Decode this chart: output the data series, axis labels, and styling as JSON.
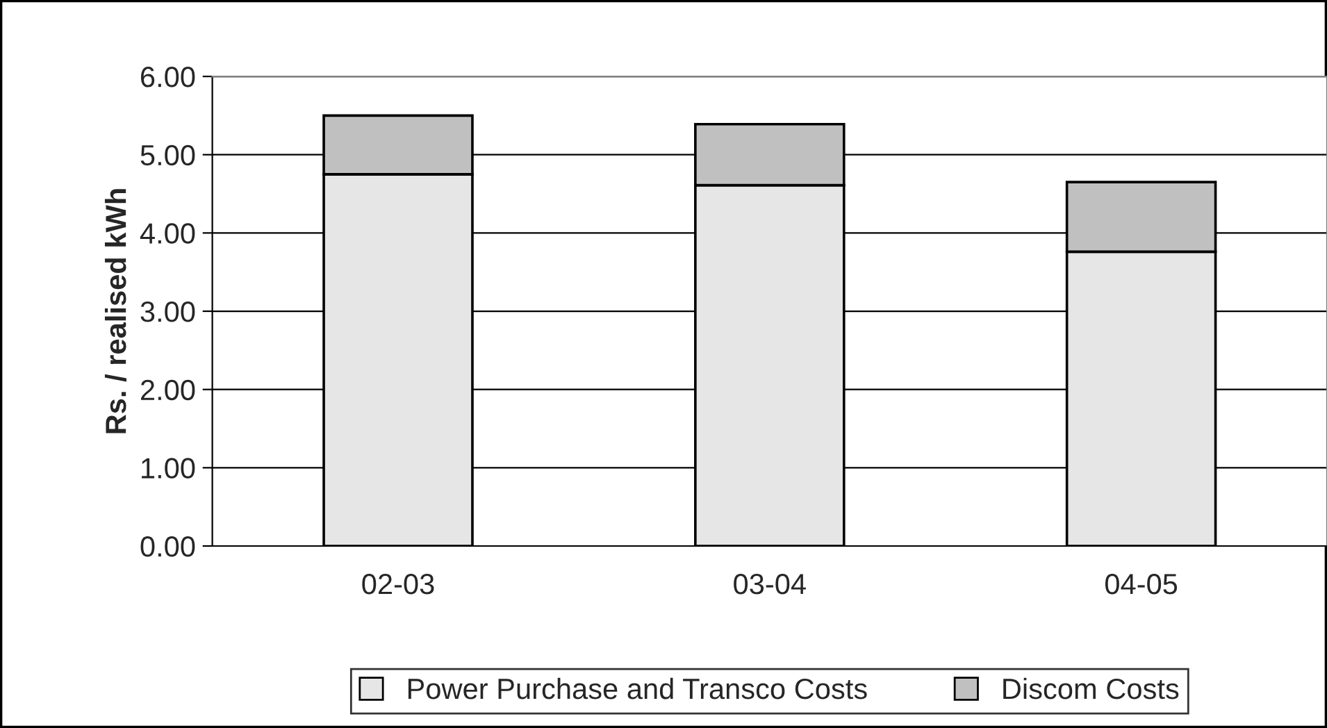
{
  "chart_data": {
    "type": "bar",
    "stacked": true,
    "ylabel": "Rs. / realised kWh",
    "categories": [
      "02-03",
      "03-04",
      "04-05"
    ],
    "series": [
      {
        "name": "Power Purchase and Transco Costs",
        "color": "#e6e6e6",
        "values": [
          4.75,
          4.61,
          3.76
        ]
      },
      {
        "name": "Discom Costs",
        "color": "#c0c0c0",
        "values": [
          0.75,
          0.78,
          0.89
        ]
      }
    ],
    "ylim": [
      0,
      6
    ],
    "yticks": [
      {
        "value": 0,
        "label": "0.00"
      },
      {
        "value": 1,
        "label": "1.00"
      },
      {
        "value": 2,
        "label": "2.00"
      },
      {
        "value": 3,
        "label": "3.00"
      },
      {
        "value": 4,
        "label": "4.00"
      },
      {
        "value": 5,
        "label": "5.00"
      },
      {
        "value": 6,
        "label": "6.00"
      }
    ],
    "grid": "y",
    "legend": "bottom"
  }
}
